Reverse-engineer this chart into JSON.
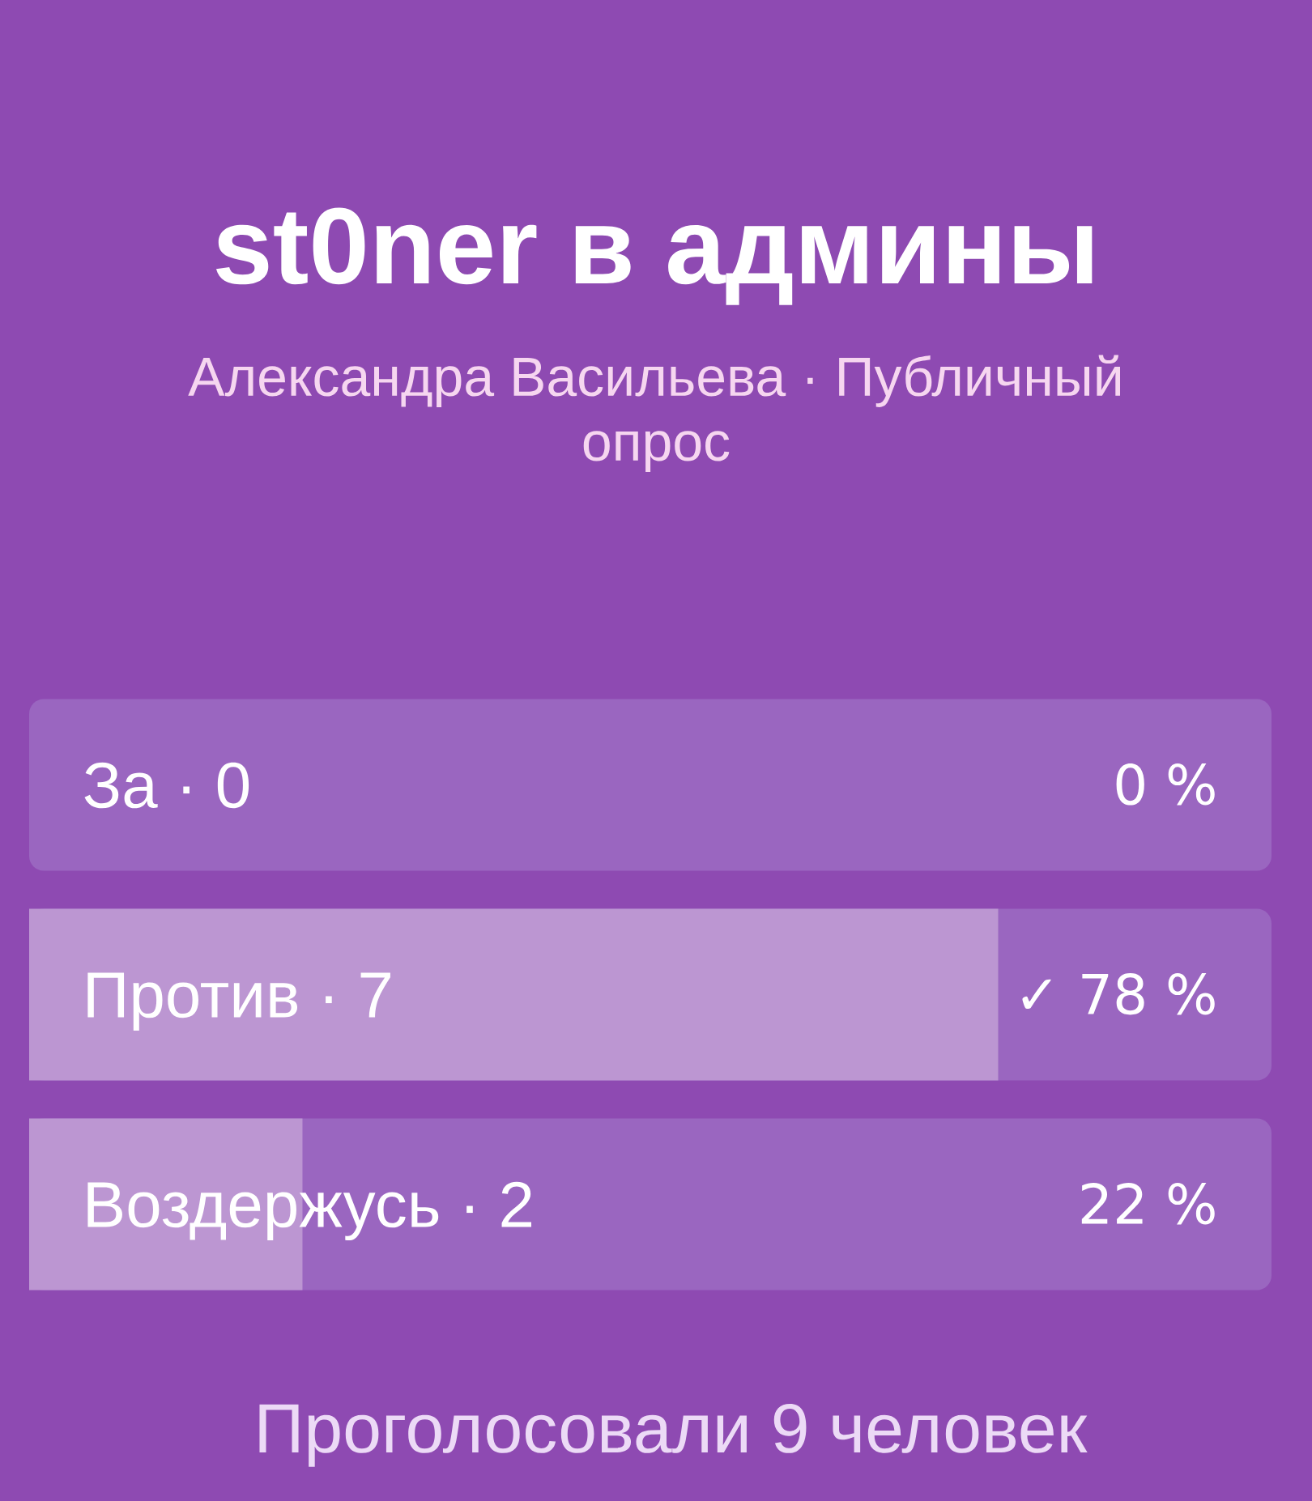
{
  "chart_data": {
    "type": "bar",
    "orientation": "horizontal",
    "title": "st0ner в админы",
    "subtitle": "Александра Васильева · Публичный опрос",
    "categories": [
      "За · 0",
      "Против · 7",
      "Воздержусь · 2"
    ],
    "series": [
      {
        "color": "#bc96d2",
        "values": [
          0,
          78,
          22
        ],
        "value_labels": [
          "0 %",
          "✓ 78 %",
          "22 %"
        ]
      }
    ],
    "xlim": [
      0,
      100
    ],
    "tick_labels": "y",
    "annotations": [
      "Проголосовали 9 человек"
    ]
  }
}
